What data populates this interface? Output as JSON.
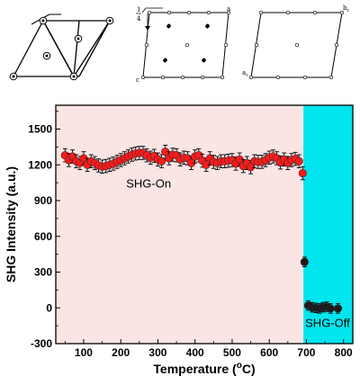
{
  "top_panels": {
    "panel_b": {
      "fraction_num": "1",
      "fraction_den": "4",
      "label_a": "a",
      "label_c": "c"
    },
    "panel_c": {
      "label_br": "b",
      "label_ar": "a",
      "sub_r": "r"
    }
  },
  "chart_data": {
    "type": "scatter",
    "xlabel": "Temperature (",
    "xlabel_sup": "o",
    "xlabel_tail": "C)",
    "ylabel": "SHG Intensity (a.u.)",
    "xlim": [
      25,
      825
    ],
    "ylim": [
      -300,
      1700
    ],
    "xticks": [
      100,
      200,
      300,
      400,
      500,
      600,
      700,
      800
    ],
    "yticks": [
      -300,
      0,
      300,
      600,
      900,
      1200,
      1500
    ],
    "grid": false,
    "regions": [
      {
        "name": "SHG-On",
        "x_start": 25,
        "x_end": 692,
        "color": "#fbe4e4"
      },
      {
        "name": "SHG-Off",
        "x_start": 692,
        "x_end": 825,
        "color": "#00e5ee"
      }
    ],
    "annotations": [
      {
        "text": "SHG-On",
        "x": 275,
        "y": 1010
      },
      {
        "text": "SHG-Off",
        "x": 757,
        "y": -160
      }
    ],
    "series": [
      {
        "color": "#ff1a1a",
        "error": 55,
        "points": [
          [
            50,
            1280
          ],
          [
            60,
            1240
          ],
          [
            70,
            1270
          ],
          [
            80,
            1230
          ],
          [
            90,
            1215
          ],
          [
            100,
            1255
          ],
          [
            110,
            1200
          ],
          [
            120,
            1230
          ],
          [
            130,
            1215
          ],
          [
            140,
            1195
          ],
          [
            150,
            1185
          ],
          [
            160,
            1190
          ],
          [
            170,
            1200
          ],
          [
            180,
            1210
          ],
          [
            190,
            1225
          ],
          [
            200,
            1240
          ],
          [
            210,
            1255
          ],
          [
            220,
            1270
          ],
          [
            230,
            1285
          ],
          [
            240,
            1295
          ],
          [
            250,
            1300
          ],
          [
            260,
            1300
          ],
          [
            270,
            1280
          ],
          [
            280,
            1260
          ],
          [
            290,
            1275
          ],
          [
            300,
            1245
          ],
          [
            310,
            1230
          ],
          [
            320,
            1310
          ],
          [
            330,
            1255
          ],
          [
            340,
            1285
          ],
          [
            350,
            1280
          ],
          [
            360,
            1245
          ],
          [
            370,
            1260
          ],
          [
            380,
            1255
          ],
          [
            390,
            1215
          ],
          [
            400,
            1270
          ],
          [
            410,
            1280
          ],
          [
            420,
            1235
          ],
          [
            430,
            1200
          ],
          [
            440,
            1255
          ],
          [
            450,
            1225
          ],
          [
            460,
            1215
          ],
          [
            470,
            1230
          ],
          [
            480,
            1230
          ],
          [
            490,
            1235
          ],
          [
            500,
            1240
          ],
          [
            510,
            1210
          ],
          [
            520,
            1245
          ],
          [
            530,
            1190
          ],
          [
            540,
            1215
          ],
          [
            550,
            1180
          ],
          [
            560,
            1230
          ],
          [
            570,
            1225
          ],
          [
            580,
            1225
          ],
          [
            590,
            1240
          ],
          [
            600,
            1260
          ],
          [
            610,
            1270
          ],
          [
            620,
            1255
          ],
          [
            630,
            1220
          ],
          [
            640,
            1245
          ],
          [
            650,
            1215
          ],
          [
            660,
            1240
          ],
          [
            670,
            1250
          ],
          [
            680,
            1230
          ],
          [
            690,
            1130
          ]
        ]
      },
      {
        "color": "#1a1a1a",
        "error": 40,
        "points": [
          [
            695,
            385
          ],
          [
            705,
            20
          ],
          [
            715,
            5
          ],
          [
            725,
            0
          ],
          [
            735,
            -5
          ],
          [
            745,
            5
          ],
          [
            755,
            10
          ],
          [
            765,
            -5
          ],
          [
            785,
            -5
          ]
        ]
      }
    ]
  }
}
